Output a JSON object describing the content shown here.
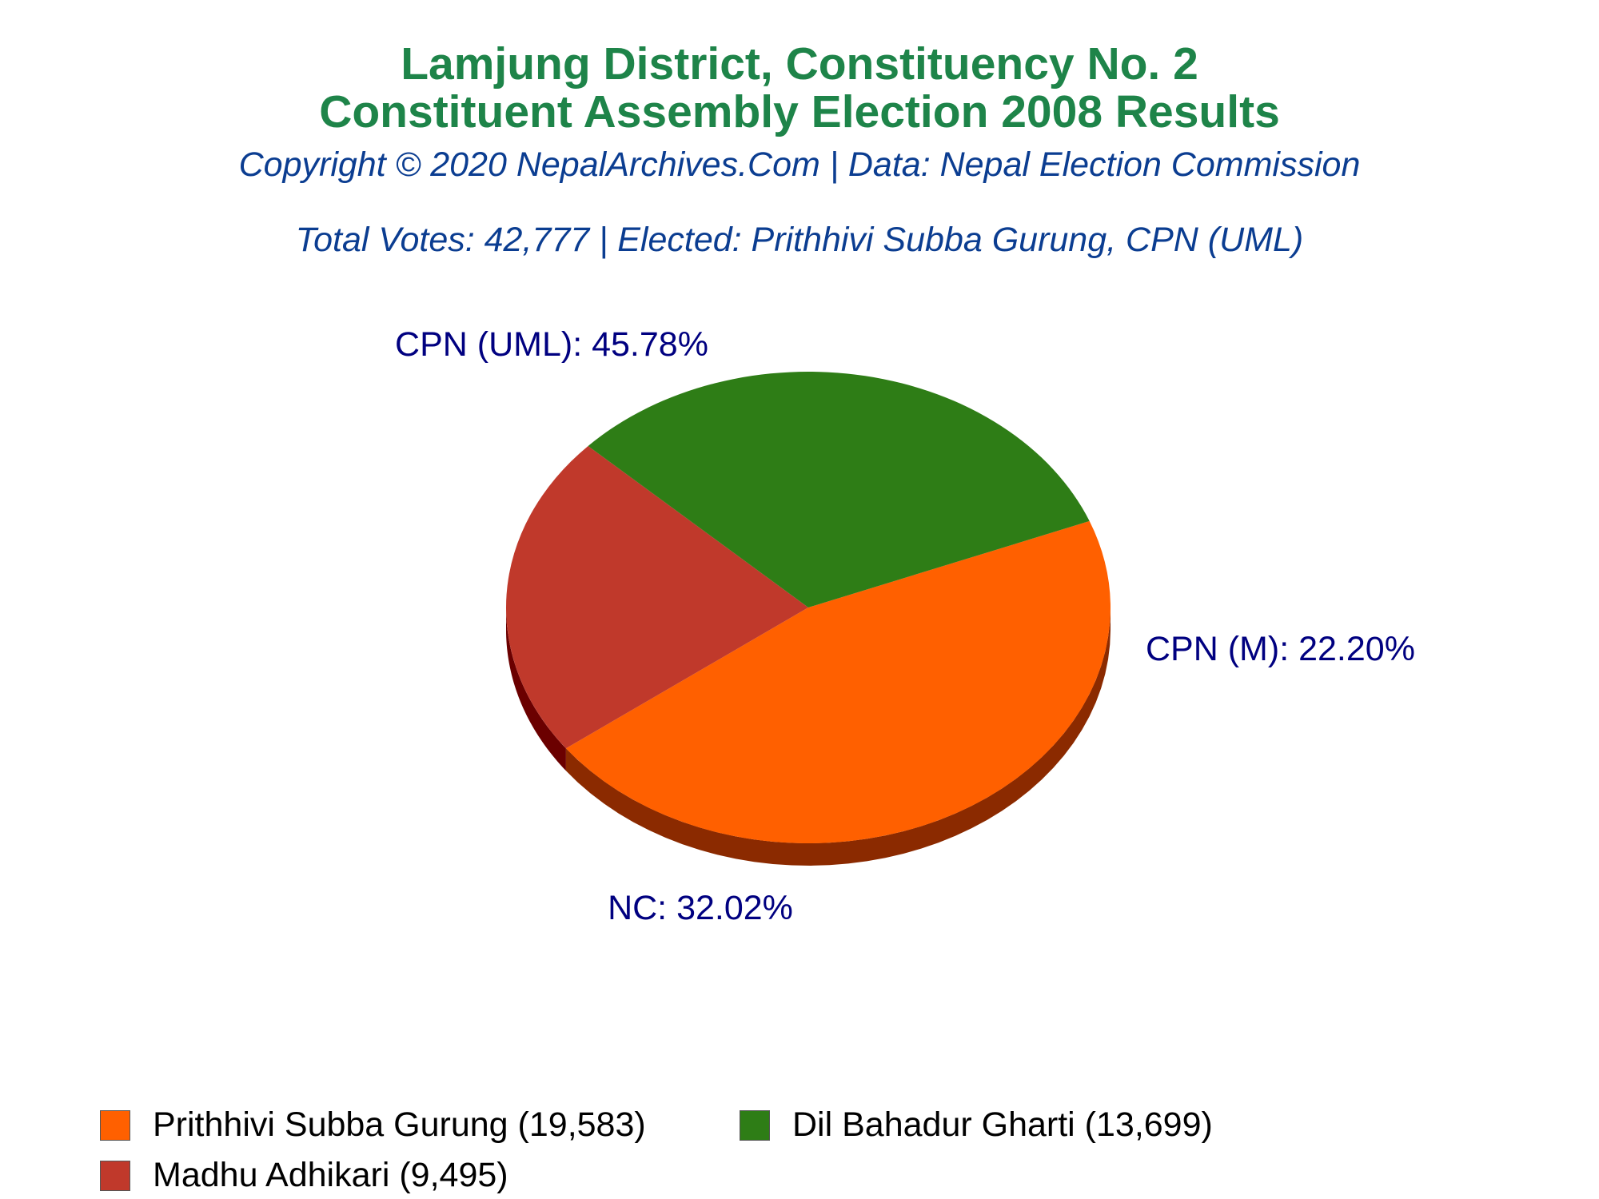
{
  "title_line1": "Lamjung District, Constituency No. 2",
  "title_line2": "Constituent Assembly Election 2008 Results",
  "subtitle": "Copyright © 2020 NepalArchives.Com | Data: Nepal Election Commission",
  "summary": "Total Votes: 42,777 | Elected: Prithhivi Subba Gurung, CPN (UML)",
  "colors": {
    "title": "#1e8449",
    "subtitle": "#0b3d91",
    "label": "#000080"
  },
  "chart_data": {
    "type": "pie",
    "total_votes": 42777,
    "slices": [
      {
        "party": "CPN (UML)",
        "candidate": "Prithhivi Subba Gurung",
        "votes": 19583,
        "percent": 45.78,
        "label": "CPN (UML): 45.78%",
        "legend": "Prithhivi Subba Gurung (19,583)",
        "color": "#ff6000",
        "side_color": "#8b2a00"
      },
      {
        "party": "CPN (M)",
        "candidate": "Madhu Adhikari",
        "votes": 9495,
        "percent": 22.2,
        "label": "CPN (M): 22.20%",
        "legend": "Madhu Adhikari (9,495)",
        "color": "#c0392b",
        "side_color": "#6b0000"
      },
      {
        "party": "NC",
        "candidate": "Dil Bahadur Gharti",
        "votes": 13699,
        "percent": 32.02,
        "label": "NC: 32.02%",
        "legend": "Dil Bahadur Gharti (13,699)",
        "color": "#2e7d16",
        "side_color": "#002600"
      }
    ],
    "legend_order": [
      0,
      2,
      1
    ],
    "legend_position": "bottom-left"
  }
}
